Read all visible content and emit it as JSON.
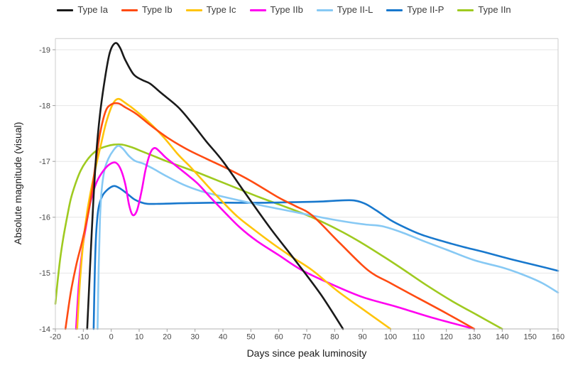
{
  "chart_data": {
    "type": "line",
    "title": "",
    "xlabel": "Days since peak luminosity",
    "ylabel": "Absolute magnitude (visual)",
    "x_range": [
      -20,
      160
    ],
    "y_range": [
      -19.2,
      -14
    ],
    "y_axis_note": "magnitude axis inverted: brighter (more negative) plotted upward",
    "x_ticks": [
      -20,
      -10,
      0,
      10,
      20,
      30,
      40,
      50,
      60,
      70,
      80,
      90,
      100,
      110,
      120,
      130,
      140,
      150,
      160
    ],
    "y_ticks": [
      -19,
      -18,
      -17,
      -16,
      -15,
      -14
    ],
    "grid": true,
    "legend_position": "top",
    "frame_color": "#cccccc",
    "grid_color": "#e6e6e6",
    "baseline_color": "#b3b3b3",
    "series": [
      {
        "name": "Type Ia",
        "color": "#1a1a1a",
        "points": [
          [
            -8.6,
            -14
          ],
          [
            -7.6,
            -15.1
          ],
          [
            -6.6,
            -16.1
          ],
          [
            -5.4,
            -17.1
          ],
          [
            -4,
            -17.85
          ],
          [
            -2.2,
            -18.5
          ],
          [
            -0.5,
            -18.95
          ],
          [
            1.5,
            -19.12
          ],
          [
            3.2,
            -19.03
          ],
          [
            5,
            -18.82
          ],
          [
            8,
            -18.56
          ],
          [
            11,
            -18.46
          ],
          [
            14,
            -18.39
          ],
          [
            18,
            -18.22
          ],
          [
            24,
            -17.97
          ],
          [
            29,
            -17.68
          ],
          [
            34,
            -17.36
          ],
          [
            40,
            -17.0
          ],
          [
            48,
            -16.43
          ],
          [
            57,
            -15.8
          ],
          [
            66,
            -15.22
          ],
          [
            75,
            -14.62
          ],
          [
            83,
            -14.0
          ]
        ]
      },
      {
        "name": "Type Ib",
        "color": "#ff4b12",
        "points": [
          [
            -16.4,
            -14
          ],
          [
            -14.5,
            -14.65
          ],
          [
            -12.5,
            -15.15
          ],
          [
            -10.5,
            -15.55
          ],
          [
            -8.5,
            -16.0
          ],
          [
            -6.8,
            -16.5
          ],
          [
            -5.5,
            -17.0
          ],
          [
            -4,
            -17.5
          ],
          [
            -2,
            -17.9
          ],
          [
            0,
            -18.02
          ],
          [
            2.5,
            -18.04
          ],
          [
            5,
            -17.97
          ],
          [
            9,
            -17.85
          ],
          [
            14,
            -17.65
          ],
          [
            20,
            -17.43
          ],
          [
            27,
            -17.22
          ],
          [
            34,
            -17.05
          ],
          [
            42,
            -16.86
          ],
          [
            50,
            -16.65
          ],
          [
            60,
            -16.35
          ],
          [
            66,
            -16.2
          ],
          [
            72,
            -16.03
          ],
          [
            82,
            -15.53
          ],
          [
            92,
            -15.05
          ],
          [
            100,
            -14.82
          ],
          [
            110,
            -14.55
          ],
          [
            120,
            -14.28
          ],
          [
            130,
            -14.0
          ]
        ]
      },
      {
        "name": "Type Ic",
        "color": "#ffc40a",
        "points": [
          [
            -12.2,
            -14
          ],
          [
            -11.2,
            -14.85
          ],
          [
            -10,
            -15.55
          ],
          [
            -8.6,
            -16.1
          ],
          [
            -7,
            -16.55
          ],
          [
            -5.3,
            -16.95
          ],
          [
            -3.6,
            -17.32
          ],
          [
            -1.8,
            -17.7
          ],
          [
            0.5,
            -18.02
          ],
          [
            2.5,
            -18.12
          ],
          [
            5,
            -18.05
          ],
          [
            9,
            -17.9
          ],
          [
            14,
            -17.68
          ],
          [
            19,
            -17.42
          ],
          [
            24,
            -17.12
          ],
          [
            28,
            -16.92
          ],
          [
            32,
            -16.7
          ],
          [
            36,
            -16.48
          ],
          [
            40,
            -16.27
          ],
          [
            45,
            -16.02
          ],
          [
            50,
            -15.82
          ],
          [
            58,
            -15.52
          ],
          [
            65,
            -15.28
          ],
          [
            72,
            -15.05
          ],
          [
            81,
            -14.68
          ],
          [
            91,
            -14.32
          ],
          [
            100,
            -14.0
          ]
        ]
      },
      {
        "name": "Type IIb",
        "color": "#ff00f0",
        "points": [
          [
            -12.6,
            -14
          ],
          [
            -11.6,
            -14.8
          ],
          [
            -10.4,
            -15.4
          ],
          [
            -9,
            -15.85
          ],
          [
            -7.3,
            -16.3
          ],
          [
            -5.3,
            -16.62
          ],
          [
            -3,
            -16.82
          ],
          [
            -0.8,
            -16.94
          ],
          [
            1.5,
            -16.98
          ],
          [
            3.3,
            -16.87
          ],
          [
            5,
            -16.6
          ],
          [
            6.4,
            -16.22
          ],
          [
            7.7,
            -16.04
          ],
          [
            9.2,
            -16.12
          ],
          [
            10.8,
            -16.45
          ],
          [
            12.3,
            -16.85
          ],
          [
            14,
            -17.15
          ],
          [
            15.5,
            -17.24
          ],
          [
            17.3,
            -17.18
          ],
          [
            19.5,
            -17.07
          ],
          [
            23,
            -16.93
          ],
          [
            27,
            -16.77
          ],
          [
            31,
            -16.6
          ],
          [
            36,
            -16.33
          ],
          [
            41,
            -16.07
          ],
          [
            46,
            -15.82
          ],
          [
            52,
            -15.58
          ],
          [
            60,
            -15.32
          ],
          [
            68,
            -15.06
          ],
          [
            78,
            -14.82
          ],
          [
            90,
            -14.57
          ],
          [
            102,
            -14.4
          ],
          [
            115,
            -14.2
          ],
          [
            130,
            -14.0
          ]
        ]
      },
      {
        "name": "Type II-L",
        "color": "#87c9f4",
        "points": [
          [
            -4.9,
            -14
          ],
          [
            -4.5,
            -15.1
          ],
          [
            -4,
            -16.0
          ],
          [
            -3.4,
            -16.5
          ],
          [
            -2.4,
            -16.85
          ],
          [
            -1,
            -17.05
          ],
          [
            0.8,
            -17.2
          ],
          [
            2.5,
            -17.28
          ],
          [
            4.3,
            -17.22
          ],
          [
            6.3,
            -17.1
          ],
          [
            8.5,
            -17.01
          ],
          [
            11.5,
            -16.96
          ],
          [
            15,
            -16.87
          ],
          [
            20,
            -16.73
          ],
          [
            26,
            -16.58
          ],
          [
            32,
            -16.47
          ],
          [
            39,
            -16.38
          ],
          [
            46,
            -16.3
          ],
          [
            53,
            -16.22
          ],
          [
            60,
            -16.15
          ],
          [
            68,
            -16.07
          ],
          [
            76,
            -15.99
          ],
          [
            84,
            -15.92
          ],
          [
            91,
            -15.87
          ],
          [
            97,
            -15.84
          ],
          [
            104,
            -15.73
          ],
          [
            112,
            -15.57
          ],
          [
            120,
            -15.42
          ],
          [
            130,
            -15.23
          ],
          [
            140,
            -15.1
          ],
          [
            147,
            -14.98
          ],
          [
            154,
            -14.83
          ],
          [
            160,
            -14.65
          ]
        ]
      },
      {
        "name": "Type II-P",
        "color": "#1878cd",
        "points": [
          [
            -6.3,
            -14
          ],
          [
            -5.9,
            -15.0
          ],
          [
            -5.4,
            -15.7
          ],
          [
            -4.6,
            -16.15
          ],
          [
            -3.2,
            -16.38
          ],
          [
            -1.2,
            -16.5
          ],
          [
            1,
            -16.56
          ],
          [
            3,
            -16.52
          ],
          [
            5.5,
            -16.43
          ],
          [
            8,
            -16.33
          ],
          [
            10.5,
            -16.27
          ],
          [
            13,
            -16.24
          ],
          [
            17,
            -16.24
          ],
          [
            25,
            -16.25
          ],
          [
            35,
            -16.26
          ],
          [
            45,
            -16.26
          ],
          [
            55,
            -16.26
          ],
          [
            65,
            -16.27
          ],
          [
            74,
            -16.28
          ],
          [
            82,
            -16.3
          ],
          [
            87,
            -16.3
          ],
          [
            91,
            -16.24
          ],
          [
            95,
            -16.12
          ],
          [
            100,
            -15.95
          ],
          [
            105,
            -15.82
          ],
          [
            111,
            -15.69
          ],
          [
            118,
            -15.58
          ],
          [
            126,
            -15.47
          ],
          [
            134,
            -15.37
          ],
          [
            143,
            -15.25
          ],
          [
            152,
            -15.14
          ],
          [
            160,
            -15.04
          ]
        ]
      },
      {
        "name": "Type IIn",
        "color": "#9fca20",
        "points": [
          [
            -20,
            -14.45
          ],
          [
            -19.2,
            -14.85
          ],
          [
            -18.3,
            -15.25
          ],
          [
            -17.2,
            -15.62
          ],
          [
            -16,
            -15.95
          ],
          [
            -14.5,
            -16.32
          ],
          [
            -12.8,
            -16.6
          ],
          [
            -11,
            -16.83
          ],
          [
            -9,
            -17.0
          ],
          [
            -6.8,
            -17.13
          ],
          [
            -4.4,
            -17.22
          ],
          [
            -1.8,
            -17.27
          ],
          [
            1,
            -17.3
          ],
          [
            4,
            -17.3
          ],
          [
            7.5,
            -17.25
          ],
          [
            11,
            -17.18
          ],
          [
            15,
            -17.1
          ],
          [
            20,
            -17.0
          ],
          [
            25.5,
            -16.9
          ],
          [
            31,
            -16.8
          ],
          [
            38,
            -16.66
          ],
          [
            45,
            -16.52
          ],
          [
            53,
            -16.36
          ],
          [
            60,
            -16.23
          ],
          [
            68,
            -16.08
          ],
          [
            75,
            -15.93
          ],
          [
            83,
            -15.73
          ],
          [
            90,
            -15.53
          ],
          [
            98,
            -15.28
          ],
          [
            105,
            -15.05
          ],
          [
            113,
            -14.78
          ],
          [
            122,
            -14.5
          ],
          [
            131,
            -14.25
          ],
          [
            140,
            -14.0
          ]
        ]
      }
    ]
  }
}
